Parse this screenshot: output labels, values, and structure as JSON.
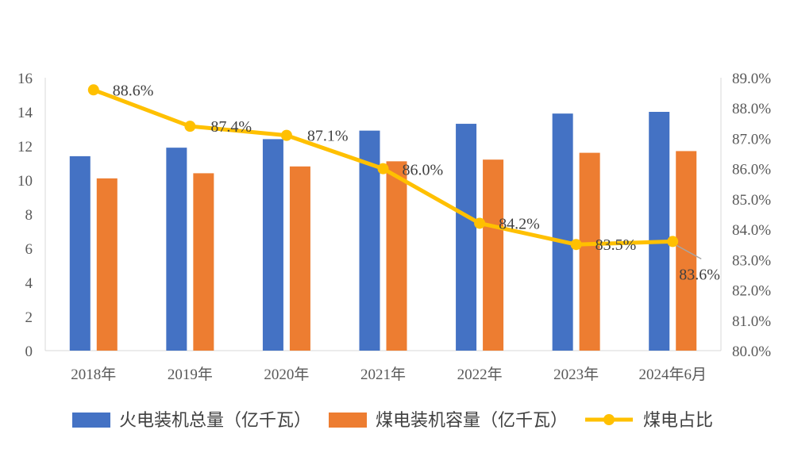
{
  "chart_data": {
    "type": "bar",
    "categories": [
      "2018年",
      "2019年",
      "2020年",
      "2021年",
      "2022年",
      "2023年",
      "2024年6月"
    ],
    "series": [
      {
        "name": "火电装机总量（亿千瓦）",
        "kind": "bar",
        "axis": "left",
        "color": "#4472C4",
        "values": [
          11.4,
          11.9,
          12.4,
          12.9,
          13.3,
          13.9,
          14.0
        ]
      },
      {
        "name": "煤电装机容量（亿千瓦）",
        "kind": "bar",
        "axis": "left",
        "color": "#ED7D31",
        "values": [
          10.1,
          10.4,
          10.8,
          11.1,
          11.2,
          11.6,
          11.7
        ]
      },
      {
        "name": "煤电占比",
        "kind": "line",
        "axis": "right",
        "color": "#FFC000",
        "values": [
          88.6,
          87.4,
          87.1,
          86.0,
          84.2,
          83.5,
          83.6
        ],
        "data_labels": [
          "88.6%",
          "87.4%",
          "87.1%",
          "86.0%",
          "84.2%",
          "83.5%",
          "83.6%"
        ]
      }
    ],
    "y_left": {
      "min": 0,
      "max": 16,
      "step": 2,
      "ticks": [
        "0",
        "2",
        "4",
        "6",
        "8",
        "10",
        "12",
        "14",
        "16"
      ]
    },
    "y_right": {
      "min": 80,
      "max": 89,
      "step": 1,
      "ticks": [
        "80.0%",
        "81.0%",
        "82.0%",
        "83.0%",
        "84.0%",
        "85.0%",
        "86.0%",
        "87.0%",
        "88.0%",
        "89.0%"
      ]
    },
    "grid": false,
    "legend_position": "bottom"
  }
}
